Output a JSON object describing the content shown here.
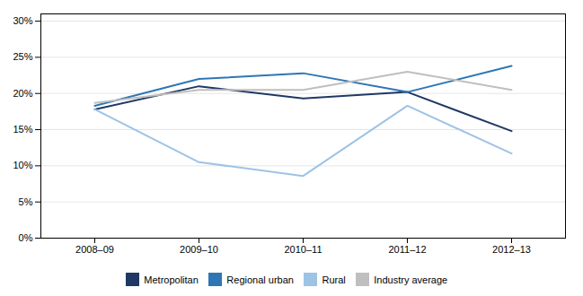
{
  "chart_data": {
    "type": "line",
    "categories": [
      "2008–09",
      "2009–10",
      "2010–11",
      "2011–12",
      "2012–13"
    ],
    "series": [
      {
        "name": "Metropolitan",
        "color": "#1F3864",
        "values": [
          0.178,
          0.21,
          0.193,
          0.202,
          0.148
        ]
      },
      {
        "name": "Regional urban",
        "color": "#2E75B6",
        "values": [
          0.183,
          0.22,
          0.228,
          0.202,
          0.238
        ]
      },
      {
        "name": "Rural",
        "color": "#9DC3E6",
        "values": [
          0.178,
          0.105,
          0.086,
          0.183,
          0.117
        ]
      },
      {
        "name": "Industry average",
        "color": "#BFBFBF",
        "values": [
          0.187,
          0.205,
          0.205,
          0.23,
          0.205
        ]
      }
    ],
    "ylim": [
      0.0,
      0.31
    ],
    "yticks": [
      {
        "value": 0.0,
        "label": "0%"
      },
      {
        "value": 0.05,
        "label": "5%"
      },
      {
        "value": 0.1,
        "label": "10%"
      },
      {
        "value": 0.15,
        "label": "15%"
      },
      {
        "value": 0.2,
        "label": "20%"
      },
      {
        "value": 0.25,
        "label": "25%"
      },
      {
        "value": 0.3,
        "label": "30%"
      }
    ],
    "grid": true,
    "legend": "bottom"
  }
}
